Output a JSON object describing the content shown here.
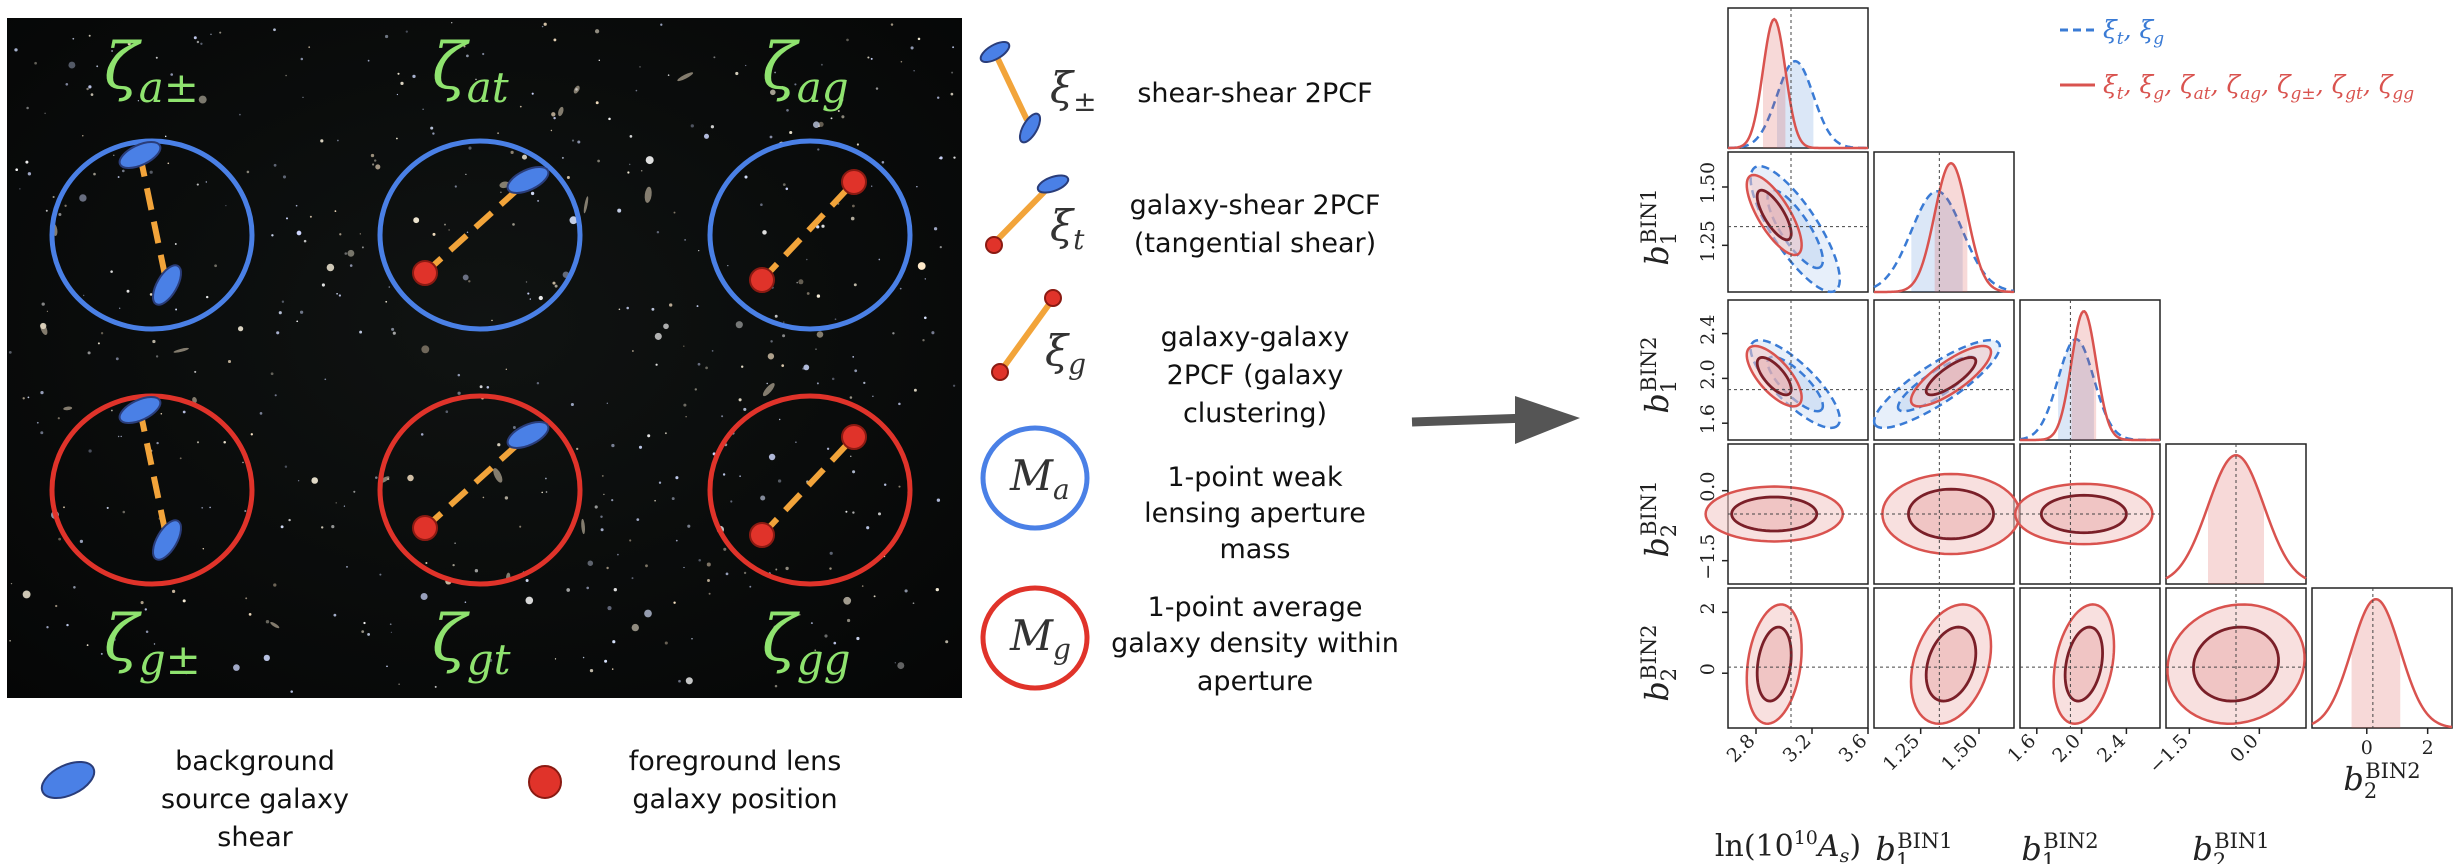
{
  "diagram": {
    "panels": [
      {
        "label": "ζ",
        "sub": "a±",
        "type": "shear-shear",
        "circle": "blue"
      },
      {
        "label": "ζ",
        "sub": "at",
        "type": "galaxy-shear",
        "circle": "blue"
      },
      {
        "label": "ζ",
        "sub": "ag",
        "type": "galaxy-galaxy",
        "circle": "blue"
      },
      {
        "label": "ζ",
        "sub": "g±",
        "type": "shear-shear",
        "circle": "red"
      },
      {
        "label": "ζ",
        "sub": "gt",
        "type": "galaxy-shear",
        "circle": "red"
      },
      {
        "label": "ζ",
        "sub": "gg",
        "type": "galaxy-galaxy",
        "circle": "red"
      }
    ],
    "key": [
      {
        "symbol": "ξ",
        "sub": "±",
        "lines": [
          "shear-shear 2PCF"
        ]
      },
      {
        "symbol": "ξ",
        "sub": "t",
        "lines": [
          "galaxy-shear 2PCF",
          "(tangential shear)"
        ]
      },
      {
        "symbol": "ξ",
        "sub": "g",
        "lines": [
          "galaxy-galaxy",
          "2PCF (galaxy",
          "clustering)"
        ]
      },
      {
        "symbol": "M",
        "sub": "a",
        "lines": [
          "1-point weak",
          "lensing aperture",
          "mass"
        ]
      },
      {
        "symbol": "M",
        "sub": "g",
        "lines": [
          "1-point average",
          "galaxy density within",
          "aperture"
        ]
      }
    ],
    "bottom_legend": [
      {
        "marker": "blue-ellipse",
        "lines": [
          "background",
          "source galaxy",
          "shear"
        ]
      },
      {
        "marker": "red-dot",
        "lines": [
          "foreground lens",
          "galaxy position"
        ]
      }
    ]
  },
  "colors": {
    "blue": "#4a80e6",
    "red": "#e0332a",
    "orange": "#f2a43a",
    "green_label": "#8fe36f",
    "series_blue": "#3a7bd5",
    "series_red": "#d9534f",
    "inner_red": "#7a1f28",
    "arrow": "#555555"
  },
  "chart_data": {
    "type": "corner",
    "parameters": [
      {
        "name": "ln(10¹⁰A_s)",
        "label_main": "ln(10",
        "label_sup": "10",
        "label_end": "A",
        "label_end_sub": "s",
        "label_close": ")",
        "fiducial": 3.05,
        "range": [
          2.6,
          3.6
        ],
        "ticks": [
          2.8,
          3.2,
          3.6
        ],
        "tick_labels": [
          "2.8",
          "3.2",
          "3.6"
        ]
      },
      {
        "name": "b_1^BIN1",
        "sym": "b",
        "sub": "1",
        "sup": "BIN1",
        "fiducial": 1.33,
        "range": [
          1.05,
          1.65
        ],
        "ticks": [
          1.25,
          1.5
        ],
        "tick_labels": [
          "1.25",
          "1.50"
        ]
      },
      {
        "name": "b_1^BIN2",
        "sym": "b",
        "sub": "1",
        "sup": "BIN2",
        "fiducial": 1.9,
        "range": [
          1.45,
          2.7
        ],
        "ticks": [
          1.6,
          2.0,
          2.4
        ],
        "tick_labels": [
          "1.6",
          "2.0",
          "2.4"
        ]
      },
      {
        "name": "b_2^BIN1",
        "sym": "b",
        "sub": "2",
        "sup": "BIN1",
        "fiducial": -0.5,
        "range": [
          -2.0,
          1.0
        ],
        "ticks": [
          -1.5,
          0.0
        ],
        "tick_labels": [
          "−1.5",
          "0.0"
        ]
      },
      {
        "name": "b_2^BIN2",
        "sym": "b",
        "sub": "2",
        "sup": "BIN2",
        "fiducial": 0.2,
        "range": [
          -1.8,
          2.8
        ],
        "ticks": [
          0,
          2
        ],
        "tick_labels": [
          "0",
          "2"
        ]
      }
    ],
    "y_ticks_rows": {
      "1": {
        "ticks": [
          1.25,
          1.5
        ],
        "tick_labels": [
          "1.25",
          "1.50"
        ]
      },
      "2": {
        "ticks": [
          1.6,
          2.0,
          2.4
        ],
        "tick_labels": [
          "1.6",
          "2.0",
          "2.4"
        ]
      },
      "3": {
        "ticks": [
          -1.5,
          0.0
        ],
        "tick_labels": [
          "−1.5",
          "0.0"
        ]
      },
      "4": {
        "ticks": [
          0,
          2
        ],
        "tick_labels": [
          "0",
          "2"
        ]
      }
    },
    "series": [
      {
        "name": "ξt, ξg",
        "legend_parts": [
          [
            "ξ",
            "t"
          ],
          [
            "ξ",
            "g"
          ]
        ],
        "color": "#3a7bd5",
        "style": "dashed",
        "means": [
          3.08,
          1.32,
          1.95,
          null,
          null
        ],
        "sigmas": [
          0.13,
          0.11,
          0.16,
          null,
          null
        ],
        "correlations": {
          "1-0": -0.8,
          "2-0": -0.8,
          "2-1": 0.85
        }
      },
      {
        "name": "ξt, ξg, ζat, ζag, ζg±, ζgt, ζgg",
        "legend_parts": [
          [
            "ξ",
            "t"
          ],
          [
            "ξ",
            "g"
          ],
          [
            "ζ",
            "at"
          ],
          [
            "ζ",
            "ag"
          ],
          [
            "ζ",
            "g±"
          ],
          [
            "ζ",
            "gt"
          ],
          [
            "ζ",
            "gg"
          ]
        ],
        "color": "#d9534f",
        "style": "solid",
        "means": [
          2.93,
          1.38,
          2.02,
          -0.5,
          0.3
        ],
        "sigmas": [
          0.08,
          0.07,
          0.11,
          0.6,
          0.8
        ],
        "correlations": {
          "1-0": -0.75,
          "2-0": -0.7,
          "2-1": 0.8,
          "3-0": 0.0,
          "3-1": 0.0,
          "3-2": 0.0,
          "4-0": 0.25,
          "4-1": 0.3,
          "4-2": 0.3,
          "4-3": 0.1
        }
      }
    ],
    "grid": false,
    "legend_position": "top-right"
  }
}
